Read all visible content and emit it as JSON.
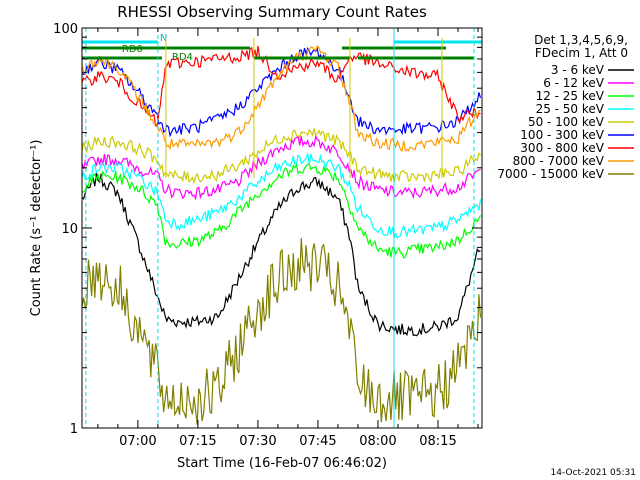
{
  "chart_data": {
    "type": "line",
    "title": "RHESSI Observing Summary Count Rates",
    "xlabel": "Start Time (16-Feb-07 06:46:02)",
    "ylabel": "Count Rate (s⁻¹ detector⁻¹)",
    "y_scale": "log",
    "ylim": [
      1,
      100
    ],
    "xlim": [
      "06:46:02",
      "08:26:00"
    ],
    "x_ticks": [
      "07:00",
      "07:15",
      "07:30",
      "07:45",
      "08:00",
      "08:15"
    ],
    "y_ticks": [
      "1",
      "10",
      "100"
    ],
    "legend_header": [
      "Det 1,3,4,5,6,9,",
      "FDecim 1, Att 0"
    ],
    "legend_position": "right",
    "timestamp": "14-Oct-2021 05:31",
    "flag_labels": {
      "n": "N",
      "rd0": "RD0",
      "rd4": "RD4"
    },
    "flag_intervals": {
      "n": [
        [
          "06:46",
          "07:05"
        ],
        [
          "08:04",
          "08:26"
        ]
      ],
      "rd0": [
        [
          "06:46",
          "07:28"
        ],
        [
          "07:51",
          "08:17"
        ]
      ],
      "rd4": [
        [
          "06:46",
          "07:06"
        ],
        [
          "07:29",
          "07:53"
        ],
        [
          "07:55",
          "08:24"
        ]
      ]
    },
    "night_markers": [
      "06:47",
      "07:05",
      "08:04",
      "08:24"
    ],
    "gap_markers": [
      "07:07",
      "07:29",
      "07:53",
      "08:16"
    ],
    "series": [
      {
        "name": "3 - 6 keV",
        "color": "#000000",
        "x": [
          "06:46",
          "06:50",
          "06:55",
          "07:00",
          "07:05",
          "07:07",
          "07:10",
          "07:15",
          "07:20",
          "07:25",
          "07:30",
          "07:35",
          "07:40",
          "07:45",
          "07:50",
          "07:53",
          "07:55",
          "08:00",
          "08:05",
          "08:10",
          "08:15",
          "08:20",
          "08:25"
        ],
        "y": [
          14,
          18,
          15,
          8.5,
          4.5,
          3.5,
          3.4,
          3.4,
          3.6,
          5.5,
          8.5,
          12.5,
          16,
          17,
          14,
          9,
          5,
          3.3,
          3.1,
          3.1,
          3.2,
          3.6,
          7.5
        ]
      },
      {
        "name": "6 - 12 keV",
        "color": "#ff00ff",
        "x": [
          "06:46",
          "06:50",
          "06:55",
          "07:00",
          "07:05",
          "07:07",
          "07:10",
          "07:15",
          "07:20",
          "07:25",
          "07:30",
          "07:35",
          "07:40",
          "07:45",
          "07:50",
          "07:53",
          "07:55",
          "08:00",
          "08:05",
          "08:10",
          "08:15",
          "08:20",
          "08:25"
        ],
        "y": [
          20,
          22,
          22,
          20,
          18,
          15.5,
          15,
          15,
          15.5,
          17,
          21,
          25,
          27,
          27,
          24,
          20,
          17,
          15.5,
          15,
          15,
          15.5,
          16,
          19
        ]
      },
      {
        "name": "12 - 25 keV",
        "color": "#00ff00",
        "x": [
          "06:46",
          "06:50",
          "06:55",
          "07:00",
          "07:05",
          "07:07",
          "07:10",
          "07:15",
          "07:20",
          "07:25",
          "07:30",
          "07:35",
          "07:40",
          "07:45",
          "07:50",
          "07:53",
          "07:55",
          "08:00",
          "08:05",
          "08:10",
          "08:15",
          "08:20",
          "08:25"
        ],
        "y": [
          16,
          18,
          18,
          16,
          13,
          8.5,
          8.3,
          8.7,
          9.5,
          12,
          15,
          18,
          20,
          20,
          18,
          13,
          10,
          7.8,
          7.5,
          7.8,
          8,
          8.7,
          11
        ]
      },
      {
        "name": "25 - 50 keV",
        "color": "#00ffff",
        "x": [
          "06:46",
          "06:50",
          "06:55",
          "07:00",
          "07:05",
          "07:07",
          "07:10",
          "07:15",
          "07:20",
          "07:25",
          "07:30",
          "07:35",
          "07:40",
          "07:45",
          "07:50",
          "07:53",
          "07:55",
          "08:00",
          "08:05",
          "08:10",
          "08:15",
          "08:20",
          "08:25"
        ],
        "y": [
          18,
          20,
          20,
          18,
          15,
          11,
          10.5,
          11,
          12,
          14,
          17,
          20,
          22,
          22,
          20,
          16,
          12.5,
          10,
          9.5,
          9.7,
          10,
          11,
          13
        ]
      },
      {
        "name": "50 - 100 keV",
        "color": "#cccc00",
        "x": [
          "06:46",
          "06:50",
          "06:55",
          "07:00",
          "07:05",
          "07:07",
          "07:10",
          "07:15",
          "07:20",
          "07:25",
          "07:30",
          "07:35",
          "07:40",
          "07:45",
          "07:50",
          "07:53",
          "07:55",
          "08:00",
          "08:05",
          "08:10",
          "08:15",
          "08:20",
          "08:25"
        ],
        "y": [
          25,
          27,
          27,
          25,
          22,
          18.5,
          18,
          18,
          18.5,
          20.5,
          24,
          28,
          30,
          30,
          27,
          23,
          20,
          18.5,
          18,
          18,
          18.5,
          19,
          23
        ]
      },
      {
        "name": "100 - 300 keV",
        "color": "#0000ff",
        "x": [
          "06:46",
          "06:50",
          "06:55",
          "07:00",
          "07:05",
          "07:07",
          "07:10",
          "07:15",
          "07:20",
          "07:25",
          "07:30",
          "07:35",
          "07:40",
          "07:45",
          "07:50",
          "07:53",
          "07:55",
          "08:00",
          "08:05",
          "08:10",
          "08:15",
          "08:20",
          "08:25"
        ],
        "y": [
          60,
          68,
          62,
          48,
          36,
          31,
          31,
          32,
          35,
          40,
          50,
          62,
          74,
          76,
          62,
          45,
          34,
          31,
          31,
          31.5,
          32,
          34,
          45
        ]
      },
      {
        "name": "300 - 800 keV",
        "color": "#ff0000",
        "x": [
          "06:46",
          "06:50",
          "06:55",
          "07:00",
          "07:05",
          "07:07",
          "07:10",
          "07:15",
          "07:20",
          "07:25",
          "07:30",
          "07:35",
          "07:40",
          "07:45",
          "07:50",
          "07:53",
          "07:55",
          "08:00",
          "08:05",
          "08:10",
          "08:15",
          "08:20",
          "08:25"
        ],
        "y": [
          52,
          58,
          54,
          42,
          33,
          66,
          67,
          68,
          70,
          72,
          76,
          58,
          64,
          67,
          55,
          72,
          72,
          66,
          62,
          59,
          57,
          36,
          38
        ]
      },
      {
        "name": "800 - 7000 keV",
        "color": "#ff9900",
        "x": [
          "06:46",
          "06:50",
          "06:55",
          "07:00",
          "07:05",
          "07:07",
          "07:10",
          "07:15",
          "07:20",
          "07:25",
          "07:30",
          "07:35",
          "07:40",
          "07:45",
          "07:50",
          "07:53",
          "07:55",
          "08:00",
          "08:05",
          "08:10",
          "08:15",
          "08:20",
          "08:25"
        ],
        "y": [
          62,
          70,
          64,
          46,
          32,
          26.5,
          26,
          26,
          27,
          30,
          41,
          58,
          72,
          78,
          64,
          42,
          30,
          26.5,
          26,
          26,
          27,
          28,
          38
        ]
      },
      {
        "name": "7000 - 15000 keV",
        "color": "#808000",
        "x": [
          "06:46",
          "06:50",
          "06:55",
          "07:00",
          "07:05",
          "07:07",
          "07:10",
          "07:15",
          "07:20",
          "07:25",
          "07:30",
          "07:35",
          "07:40",
          "07:45",
          "07:50",
          "07:53",
          "07:55",
          "08:00",
          "08:05",
          "08:10",
          "08:15",
          "08:20",
          "08:25"
        ],
        "y": [
          5,
          6,
          5,
          3.2,
          1.8,
          1.4,
          1.4,
          1.4,
          1.5,
          2.5,
          4,
          5.5,
          6.5,
          6.5,
          5,
          3,
          1.7,
          1.4,
          1.4,
          1.4,
          1.5,
          2,
          3.5
        ]
      }
    ]
  }
}
